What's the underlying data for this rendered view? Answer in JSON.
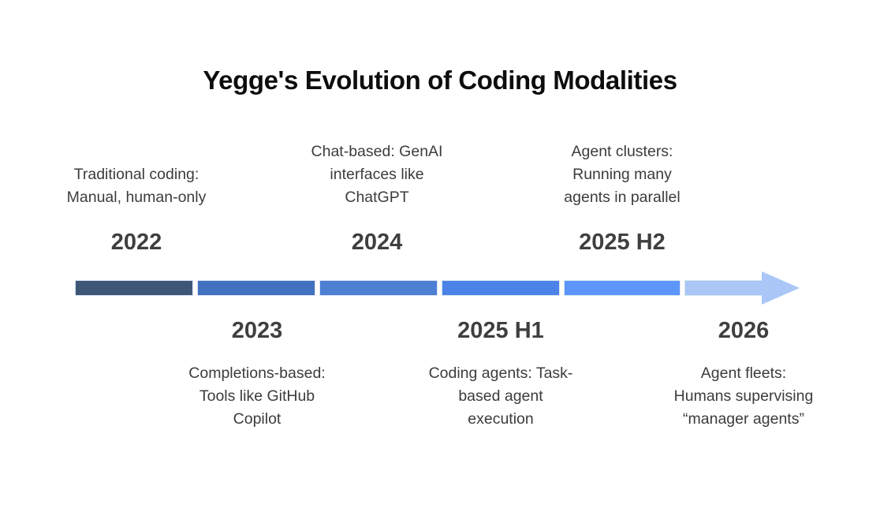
{
  "title": "Yegge's Evolution of Coding Modalities",
  "milestones": [
    {
      "year": "2022",
      "side": "above",
      "description": "Traditional coding:\nManual, human-only"
    },
    {
      "year": "2023",
      "side": "below",
      "description": "Completions-based:\nTools like GitHub\nCopilot"
    },
    {
      "year": "2024",
      "side": "above",
      "description": "Chat-based: GenAI\ninterfaces like\nChatGPT"
    },
    {
      "year": "2025 H1",
      "side": "below",
      "description": "Coding agents: Task-\nbased agent\nexecution"
    },
    {
      "year": "2025 H2",
      "side": "above",
      "description": "Agent clusters:\nRunning many\nagents in parallel"
    },
    {
      "year": "2026",
      "side": "below",
      "description": "Agent fleets:\nHumans supervising\n“manager agents”"
    }
  ],
  "timeline": {
    "direction": "left-to-right",
    "segment_colors": [
      "#3e5777",
      "#4272bf",
      "#4d7fd3",
      "#4b84e6",
      "#5c96fa",
      "#aac7f8"
    ],
    "arrow_color": "#aac7f8",
    "segment_border_color": "#dde5f2"
  },
  "colors": {
    "background": "#ffffff",
    "title_text": "#0d0d0d",
    "body_text": "#3c3c3c",
    "year_text": "#3f3f3f"
  }
}
